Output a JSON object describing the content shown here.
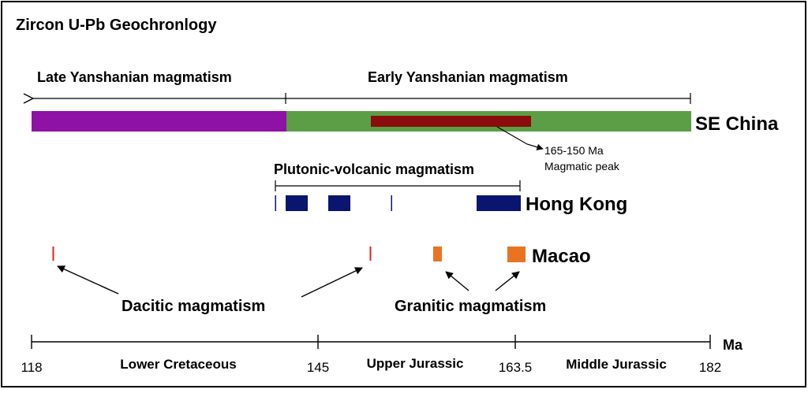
{
  "title": "Zircon U-Pb Geochronlogy",
  "timescale": {
    "unit_label": "Ma",
    "ticks": [
      "118",
      "145",
      "163.5",
      "182"
    ],
    "periods": [
      "Lower Cretaceous",
      "Upper Jurassic",
      "Middle Jurassic"
    ]
  },
  "se_china": {
    "label": "SE China",
    "late_label": "Late Yanshanian magmatism",
    "early_label": "Early Yanshanian magmatism",
    "peak_line1": "165-150 Ma",
    "peak_line2": "Magmatic peak",
    "colors": {
      "late": "#8e12a6",
      "early": "#5c9e45",
      "peak": "#8a0c0c"
    }
  },
  "hong_kong": {
    "label": "Hong Kong",
    "bracket_label": "Plutonic-volcanic magmatism",
    "color": "#0a1570"
  },
  "macao": {
    "label": "Macao",
    "dacitic_label": "Dacitic magmatism",
    "granitic_label": "Granitic magmatism",
    "colors": {
      "dacitic": "#e02020",
      "granitic": "#e87422"
    }
  }
}
